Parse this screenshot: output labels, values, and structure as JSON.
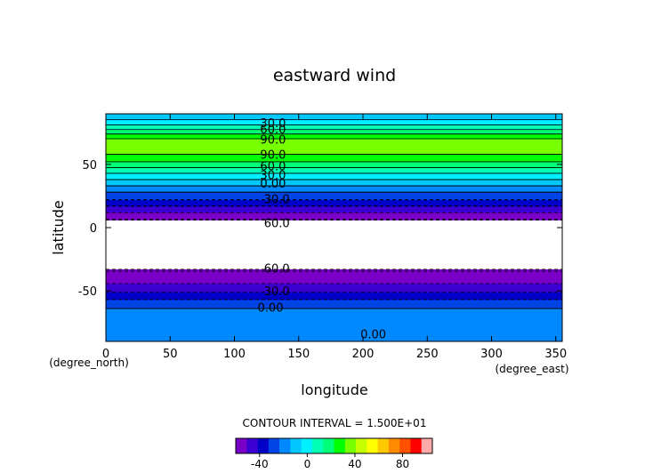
{
  "chart_data": {
    "type": "heatmap",
    "title": "eastward wind",
    "xlabel": "longitude",
    "ylabel": "latitude",
    "x_unit_label": "(degree_east)",
    "y_unit_label": "(degree_north)",
    "xlim": [
      0,
      355
    ],
    "ylim": [
      -90,
      90
    ],
    "x_ticks": [
      0,
      50,
      100,
      150,
      200,
      250,
      300,
      350
    ],
    "y_ticks": [
      -50,
      0,
      50
    ],
    "contour_interval_text": "CONTOUR INTERVAL = 1.500E+01",
    "missing_band_lat": [
      -33,
      6
    ],
    "lat_profile": [
      {
        "lat": -90,
        "u": 5
      },
      {
        "lat": -80,
        "u": 8
      },
      {
        "lat": -72,
        "u": 10
      },
      {
        "lat": -64,
        "u": 0
      },
      {
        "lat": -58,
        "u": -12
      },
      {
        "lat": -52,
        "u": -27
      },
      {
        "lat": -46,
        "u": -42
      },
      {
        "lat": -40,
        "u": -52
      },
      {
        "lat": -36,
        "u": -58
      },
      {
        "lat": -33,
        "u": -62
      },
      {
        "lat": 6,
        "u": -62
      },
      {
        "lat": 9,
        "u": -52
      },
      {
        "lat": 13,
        "u": -42
      },
      {
        "lat": 17,
        "u": -30
      },
      {
        "lat": 22,
        "u": -15
      },
      {
        "lat": 28,
        "u": 0
      },
      {
        "lat": 33,
        "u": 15
      },
      {
        "lat": 38,
        "u": 30
      },
      {
        "lat": 43,
        "u": 45
      },
      {
        "lat": 48,
        "u": 62
      },
      {
        "lat": 53,
        "u": 78
      },
      {
        "lat": 58,
        "u": 90
      },
      {
        "lat": 63,
        "u": 100
      },
      {
        "lat": 67,
        "u": 100
      },
      {
        "lat": 71,
        "u": 88
      },
      {
        "lat": 74,
        "u": 75
      },
      {
        "lat": 78,
        "u": 58
      },
      {
        "lat": 82,
        "u": 42
      },
      {
        "lat": 86,
        "u": 28
      },
      {
        "lat": 90,
        "u": 20
      }
    ],
    "contour_labels": [
      {
        "text": "30.0",
        "lon": 130,
        "lat": 83
      },
      {
        "text": "60.0",
        "lon": 130,
        "lat": 78
      },
      {
        "text": "90.0",
        "lon": 130,
        "lat": 70
      },
      {
        "text": "90.0",
        "lon": 130,
        "lat": 58
      },
      {
        "text": "60.0",
        "lon": 130,
        "lat": 49
      },
      {
        "text": "30.0",
        "lon": 130,
        "lat": 42
      },
      {
        "text": "0.00",
        "lon": 130,
        "lat": 35
      },
      {
        "text": "30.0",
        "lon": 133,
        "lat": 23
      },
      {
        "text": "60.0",
        "lon": 133,
        "lat": 4
      },
      {
        "text": "60.0",
        "lon": 133,
        "lat": -32
      },
      {
        "text": "30.0",
        "lon": 133,
        "lat": -50
      },
      {
        "text": "0.00",
        "lon": 128,
        "lat": -63
      },
      {
        "text": "0.00",
        "lon": 208,
        "lat": -84
      }
    ],
    "colorbar": {
      "min": -60,
      "max": 105,
      "interval": 15,
      "tick_labels": [
        "-40",
        "0",
        "40",
        "80"
      ],
      "tick_values": [
        -40,
        0,
        40,
        80
      ],
      "colors": [
        "#7a00c8",
        "#3c00d2",
        "#0000c8",
        "#0044e6",
        "#0088ff",
        "#00c8ff",
        "#00f0ff",
        "#00ffb4",
        "#00ff78",
        "#00ff00",
        "#78ff00",
        "#c8ff00",
        "#ffff00",
        "#ffc800",
        "#ff8c00",
        "#ff5000",
        "#ff0000",
        "#ffaaaa"
      ]
    }
  }
}
